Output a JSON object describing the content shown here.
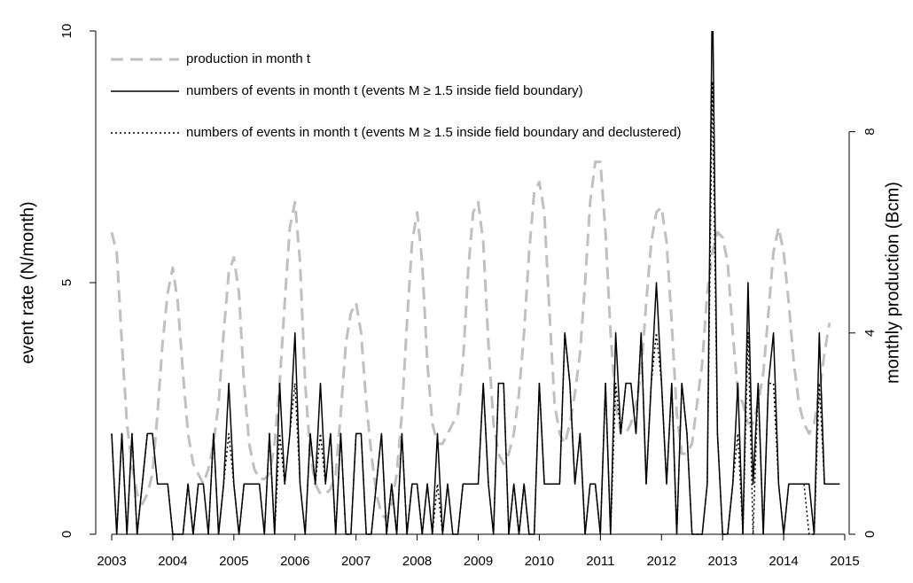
{
  "chart_data": {
    "type": "line",
    "ylabel": "event rate (N/month)",
    "y2label": "monthly production (Bcm)",
    "xlim": [
      2003,
      2015
    ],
    "xticks": [
      2003,
      2004,
      2005,
      2006,
      2007,
      2008,
      2009,
      2010,
      2011,
      2012,
      2013,
      2014,
      2015
    ],
    "ylim": [
      0,
      10
    ],
    "yticks": [
      0,
      5,
      10
    ],
    "y2lim": [
      0,
      10
    ],
    "y2ticks": [
      0,
      4,
      8
    ],
    "x": [
      2003,
      2003.083,
      2003.167,
      2003.25,
      2003.333,
      2003.417,
      2003.5,
      2003.583,
      2003.667,
      2003.75,
      2003.833,
      2003.917,
      2004,
      2004.083,
      2004.167,
      2004.25,
      2004.333,
      2004.417,
      2004.5,
      2004.583,
      2004.667,
      2004.75,
      2004.833,
      2004.917,
      2005,
      2005.083,
      2005.167,
      2005.25,
      2005.333,
      2005.417,
      2005.5,
      2005.583,
      2005.667,
      2005.75,
      2005.833,
      2005.917,
      2006,
      2006.083,
      2006.167,
      2006.25,
      2006.333,
      2006.417,
      2006.5,
      2006.583,
      2006.667,
      2006.75,
      2006.833,
      2006.917,
      2007,
      2007.083,
      2007.167,
      2007.25,
      2007.333,
      2007.417,
      2007.5,
      2007.583,
      2007.667,
      2007.75,
      2007.833,
      2007.917,
      2008,
      2008.083,
      2008.167,
      2008.25,
      2008.333,
      2008.417,
      2008.5,
      2008.583,
      2008.667,
      2008.75,
      2008.833,
      2008.917,
      2009,
      2009.083,
      2009.167,
      2009.25,
      2009.333,
      2009.417,
      2009.5,
      2009.583,
      2009.667,
      2009.75,
      2009.833,
      2009.917,
      2010,
      2010.083,
      2010.167,
      2010.25,
      2010.333,
      2010.417,
      2010.5,
      2010.583,
      2010.667,
      2010.75,
      2010.833,
      2010.917,
      2011,
      2011.083,
      2011.167,
      2011.25,
      2011.333,
      2011.417,
      2011.5,
      2011.583,
      2011.667,
      2011.75,
      2011.833,
      2011.917,
      2012,
      2012.083,
      2012.167,
      2012.25,
      2012.333,
      2012.417,
      2012.5,
      2012.583,
      2012.667,
      2012.75,
      2012.833,
      2012.917,
      2013,
      2013.083,
      2013.167,
      2013.25,
      2013.333,
      2013.417,
      2013.5,
      2013.583,
      2013.667,
      2013.75,
      2013.833,
      2013.917,
      2014,
      2014.083,
      2014.167,
      2014.25,
      2014.333,
      2014.417,
      2014.5,
      2014.583,
      2014.667,
      2014.75,
      2014.833,
      2014.917
    ],
    "series": [
      {
        "name": "production in month t",
        "color": "#c0c0c0",
        "dash": "dashed",
        "width": 3,
        "axis": "y2",
        "values": [
          6.0,
          5.6,
          3.8,
          2.2,
          1.4,
          0.8,
          0.6,
          0.8,
          1.2,
          2.4,
          3.8,
          4.8,
          5.3,
          4.6,
          3.2,
          2.0,
          1.4,
          1.2,
          1.0,
          1.3,
          1.8,
          2.6,
          4.0,
          5.2,
          5.5,
          4.8,
          3.0,
          1.8,
          1.3,
          1.1,
          1.1,
          1.2,
          1.8,
          3.0,
          4.6,
          6.1,
          6.6,
          5.4,
          3.0,
          1.6,
          1.0,
          0.8,
          0.8,
          0.9,
          1.2,
          2.4,
          3.8,
          4.4,
          4.6,
          4.0,
          2.6,
          1.6,
          0.8,
          0.4,
          0.3,
          0.6,
          1.2,
          2.4,
          4.2,
          5.8,
          6.4,
          5.4,
          3.4,
          2.2,
          1.8,
          1.8,
          2.0,
          2.2,
          2.4,
          3.4,
          5.2,
          6.4,
          6.6,
          5.8,
          3.8,
          2.2,
          1.6,
          1.4,
          1.6,
          2.0,
          2.8,
          4.0,
          5.6,
          6.8,
          7.0,
          6.4,
          4.4,
          2.6,
          2.0,
          1.8,
          2.2,
          2.8,
          3.6,
          5.0,
          6.6,
          7.4,
          7.4,
          6.0,
          4.0,
          2.6,
          2.0,
          2.0,
          2.2,
          2.6,
          3.2,
          4.6,
          5.8,
          6.4,
          6.5,
          5.8,
          4.2,
          2.4,
          1.6,
          1.6,
          1.8,
          2.6,
          3.4,
          4.8,
          5.6,
          6.0,
          5.9,
          5.4,
          4.0,
          2.8,
          2.6,
          2.2,
          2.2,
          2.6,
          3.2,
          4.4,
          5.6,
          6.1,
          5.6,
          4.6,
          3.4,
          2.6,
          2.2,
          2.0,
          2.2,
          2.8,
          3.6,
          4.2,
          null,
          null
        ]
      },
      {
        "name": "numbers of events in month t (events M ≥ 1.5 inside field boundary)",
        "color": "#000000",
        "dash": "solid",
        "width": 1.5,
        "values": [
          2,
          0,
          2,
          0,
          2,
          0,
          1,
          2,
          2,
          1,
          1,
          1,
          0,
          0,
          0,
          1,
          0,
          1,
          1,
          0,
          2,
          0,
          1,
          3,
          1,
          0,
          1,
          1,
          1,
          1,
          0,
          2,
          0,
          3,
          1,
          2,
          4,
          1,
          0,
          2,
          1,
          3,
          1,
          2,
          0,
          2,
          0,
          0,
          2,
          2,
          0,
          0,
          1,
          2,
          0,
          1,
          0,
          2,
          0,
          1,
          1,
          0,
          1,
          0,
          2,
          0,
          1,
          0,
          0,
          1,
          1,
          1,
          1,
          3,
          1,
          0,
          3,
          3,
          0,
          1,
          0,
          1,
          0,
          0,
          3,
          1,
          1,
          1,
          1,
          4,
          3,
          1,
          2,
          0,
          1,
          1,
          0,
          3,
          0,
          4,
          2,
          3,
          3,
          2,
          4,
          1,
          3,
          5,
          3,
          1,
          3,
          0,
          3,
          2,
          0,
          0,
          0,
          1,
          11,
          2,
          0,
          0,
          1,
          3,
          0,
          5,
          1,
          3,
          0,
          3,
          4,
          1,
          0,
          1,
          1,
          1,
          1,
          1,
          0,
          4,
          1,
          1,
          1,
          1
        ]
      },
      {
        "name": "numbers of events in month t (events M ≥ 1.5 inside field boundary and declustered)",
        "color": "#000000",
        "dash": "dotted",
        "width": 1.5,
        "values": [
          2,
          0,
          2,
          0,
          2,
          0,
          1,
          2,
          2,
          1,
          1,
          1,
          0,
          0,
          0,
          1,
          0,
          1,
          1,
          0,
          2,
          0,
          1,
          2,
          1,
          0,
          1,
          1,
          1,
          1,
          0,
          2,
          0,
          2,
          1,
          2,
          3,
          1,
          0,
          2,
          1,
          2,
          1,
          2,
          0,
          2,
          0,
          0,
          2,
          2,
          0,
          0,
          1,
          2,
          0,
          1,
          0,
          2,
          0,
          1,
          1,
          0,
          1,
          0,
          1,
          0,
          1,
          0,
          0,
          1,
          1,
          1,
          1,
          3,
          1,
          0,
          3,
          3,
          0,
          1,
          0,
          1,
          0,
          0,
          3,
          1,
          1,
          1,
          1,
          4,
          3,
          1,
          2,
          0,
          1,
          1,
          0,
          3,
          0,
          3,
          2,
          3,
          3,
          2,
          4,
          1,
          3,
          4,
          3,
          1,
          3,
          0,
          3,
          2,
          0,
          0,
          0,
          1,
          9,
          2,
          0,
          0,
          1,
          2,
          0,
          4,
          0,
          3,
          0,
          3,
          3,
          1,
          0,
          1,
          1,
          1,
          1,
          0,
          0,
          3,
          1,
          1,
          1,
          1
        ]
      }
    ],
    "legend": "top-left"
  }
}
